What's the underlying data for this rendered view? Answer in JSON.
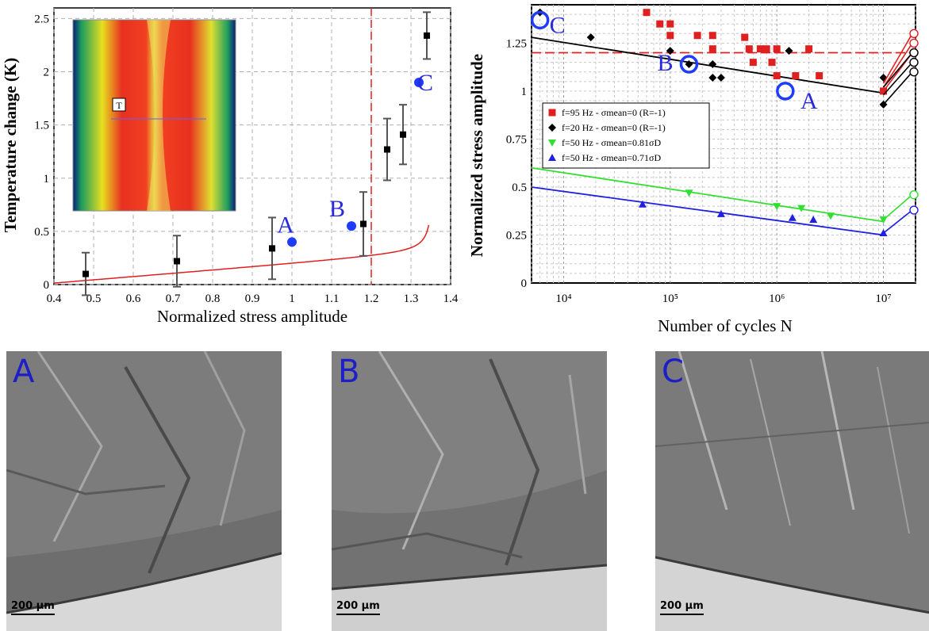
{
  "chart_data": [
    {
      "type": "scatter",
      "title": "",
      "xlabel": "Normalized stress amplitude",
      "ylabel": "Temperature change (K)",
      "xlim": [
        0.4,
        1.4
      ],
      "ylim": [
        0,
        2.6
      ],
      "xticks": [
        0.4,
        0.5,
        0.6,
        0.7,
        0.8,
        0.9,
        1,
        1.1,
        1.2,
        1.3,
        1.4
      ],
      "xtick_labels": [
        "0.4",
        "0.5",
        "0.6",
        "0.7",
        "0.8",
        "0.9",
        "1",
        "1.1",
        "1.2",
        "1.3",
        "1.4"
      ],
      "yticks": [
        0,
        0.5,
        1,
        1.5,
        2,
        2.5
      ],
      "ytick_labels": [
        "0",
        "0.5",
        "1",
        "1.5",
        "2",
        "2.5"
      ],
      "grid": true,
      "series": [
        {
          "marker": "square",
          "color": "#000000",
          "x": [
            0.48,
            0.71,
            0.95,
            1.18,
            1.24,
            1.28,
            1.34
          ],
          "y": [
            0.1,
            0.22,
            0.34,
            0.57,
            1.27,
            1.41,
            2.34
          ],
          "err": [
            0.2,
            0.24,
            0.29,
            0.3,
            0.29,
            0.28,
            0.22
          ]
        },
        {
          "marker": "circle",
          "color": "#1e3cff",
          "x": [
            1.0,
            1.15,
            1.32
          ],
          "y": [
            0.4,
            0.55,
            1.9
          ],
          "labels": [
            "A",
            "B",
            "C"
          ]
        }
      ],
      "fit_curve_color": "#e02020",
      "vertical_line": {
        "x": 1.2,
        "color": "#e02020",
        "style": "dashed"
      },
      "inset": {
        "type": "thermal-image",
        "label": "T"
      }
    },
    {
      "type": "scatter",
      "title": "",
      "xlabel": "Number of cycles N",
      "ylabel": "Normalized stress amplitude",
      "xscale": "log",
      "xlim": [
        5000,
        20000000
      ],
      "ylim": [
        0,
        1.45
      ],
      "xticks": [
        10000,
        100000,
        1000000,
        10000000
      ],
      "xtick_labels": [
        "10⁴",
        "10⁵",
        "10⁶",
        "10⁷"
      ],
      "yticks": [
        0,
        0.25,
        0.5,
        0.75,
        1,
        1.25
      ],
      "ytick_labels": [
        "0",
        "0.25",
        "0.5",
        "0.75",
        "1",
        "1.25"
      ],
      "grid": true,
      "legend_position": "center-left",
      "legend": [
        {
          "marker": "square",
          "color": "#e02020",
          "text": "f=95 Hz - σmean=0 (R=-1)"
        },
        {
          "marker": "diamond",
          "color": "#000000",
          "text": "f=20 Hz - σmean=0 (R=-1)"
        },
        {
          "marker": "triangle-down",
          "color": "#30e030",
          "text": "f=50 Hz - σmean=0.81σD"
        },
        {
          "marker": "triangle-up",
          "color": "#2020e0",
          "text": "f=50 Hz - σmean=0.71σD"
        }
      ],
      "series": [
        {
          "color": "#e02020",
          "marker": "square",
          "x": [
            60000,
            80000,
            100000,
            100000,
            180000,
            250000,
            250000,
            500000,
            550000,
            600000,
            700000,
            800000,
            900000,
            1000000,
            1000000,
            1500000,
            2000000,
            2500000,
            10000000
          ],
          "y": [
            1.41,
            1.35,
            1.35,
            1.29,
            1.29,
            1.29,
            1.22,
            1.28,
            1.22,
            1.15,
            1.22,
            1.22,
            1.15,
            1.22,
            1.08,
            1.08,
            1.22,
            1.08,
            1.0
          ],
          "fit_y": [
            1.2,
            1.2
          ]
        },
        {
          "color": "#000000",
          "marker": "diamond",
          "x": [
            6000,
            18000,
            100000,
            150000,
            250000,
            250000,
            300000,
            1300000,
            10000000,
            10000000
          ],
          "y": [
            1.41,
            1.28,
            1.21,
            1.14,
            1.14,
            1.07,
            1.07,
            1.21,
            1.07,
            0.93
          ],
          "fit_x": [
            5000,
            10000000
          ],
          "fit_y": [
            1.28,
            0.99
          ]
        },
        {
          "color": "#30e030",
          "marker": "triangle-down",
          "x": [
            150000,
            1000000,
            1700000,
            3200000,
            10000000
          ],
          "y": [
            0.47,
            0.4,
            0.39,
            0.35,
            0.33
          ],
          "fit_x": [
            5000,
            10000000
          ],
          "fit_y": [
            0.6,
            0.32
          ]
        },
        {
          "color": "#2020e0",
          "marker": "triangle-up",
          "x": [
            55000,
            300000,
            1400000,
            2200000,
            10000000
          ],
          "y": [
            0.41,
            0.36,
            0.34,
            0.33,
            0.26
          ],
          "fit_x": [
            5000,
            10000000
          ],
          "fit_y": [
            0.5,
            0.25
          ]
        }
      ],
      "annotations": [
        {
          "label": "C",
          "x": 6000,
          "y": 1.37
        },
        {
          "label": "B",
          "x": 150000,
          "y": 1.14
        },
        {
          "label": "A",
          "x": 1200000,
          "y": 1.0
        }
      ]
    }
  ],
  "micrographs": [
    {
      "label": "A",
      "scale": "200 µm"
    },
    {
      "label": "B",
      "scale": "200 µm"
    },
    {
      "label": "C",
      "scale": "200 µm"
    }
  ]
}
